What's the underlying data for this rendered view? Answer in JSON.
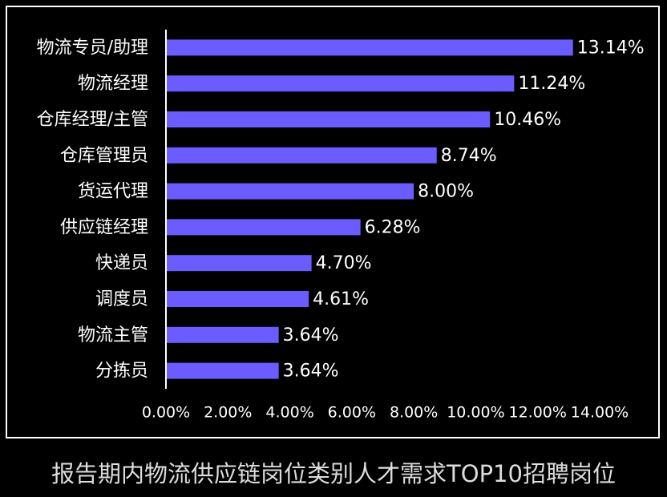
{
  "chart_data": {
    "type": "hbar",
    "caption": "报告期内物流供应链岗位类别人才需求TOP10招聘岗位",
    "categories": [
      "物流专员/助理",
      "物流经理",
      "仓库经理/主管",
      "仓库管理员",
      "货运代理",
      "供应链经理",
      "快递员",
      "调度员",
      "物流主管",
      "分拣员"
    ],
    "values": [
      13.14,
      11.24,
      10.46,
      8.74,
      8.0,
      6.28,
      4.7,
      4.61,
      3.64,
      3.64
    ],
    "value_labels": [
      "13.14%",
      "11.24%",
      "10.46%",
      "8.74%",
      "8.00%",
      "6.28%",
      "4.70%",
      "4.61%",
      "3.64%",
      "3.64%"
    ],
    "color": "#6b5cff",
    "xlim": [
      0,
      14
    ],
    "xticks": [
      {
        "value": 0,
        "label": "0.00%"
      },
      {
        "value": 2,
        "label": "2.00%"
      },
      {
        "value": 4,
        "label": "4.00%"
      },
      {
        "value": 6,
        "label": "6.00%"
      },
      {
        "value": 8,
        "label": "8.00%"
      },
      {
        "value": 10,
        "label": "10.00%"
      },
      {
        "value": 12,
        "label": "12.00%"
      },
      {
        "value": 14,
        "label": "14.00%"
      }
    ]
  }
}
